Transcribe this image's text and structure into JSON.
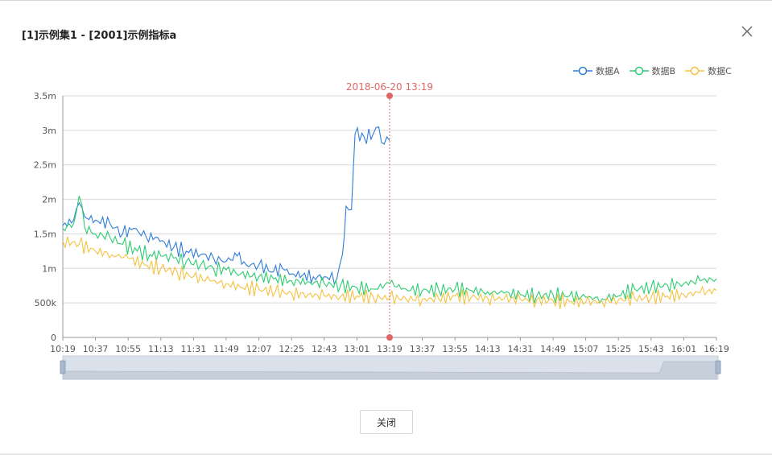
{
  "dialog": {
    "title": "[1]示例集1 - [2001]示例指标a",
    "close_button_label": "关闭",
    "close_icon": "close-icon"
  },
  "chart_data": {
    "type": "line",
    "title": "",
    "xlabel": "",
    "ylabel": "",
    "x_ticks": [
      "10:19",
      "10:37",
      "10:55",
      "11:13",
      "11:31",
      "11:49",
      "12:07",
      "12:25",
      "12:43",
      "13:01",
      "13:19",
      "13:37",
      "13:55",
      "14:13",
      "14:31",
      "14:49",
      "15:07",
      "15:25",
      "15:43",
      "16:01",
      "16:19"
    ],
    "y_ticks": [
      "0",
      "500k",
      "1m",
      "1.5m",
      "2m",
      "2.5m",
      "3m",
      "3.5m"
    ],
    "ylim": [
      0,
      3500000
    ],
    "grid": true,
    "legend_position": "top-right",
    "marker": {
      "label": "2018-06-20 13:19",
      "x": "13:19",
      "color": "#e06666"
    },
    "series": [
      {
        "name": "数据A",
        "color": "#2f7ed8",
        "points": [
          [
            "10:19",
            1620000
          ],
          [
            "10:25",
            1700000
          ],
          [
            "10:28",
            1950000
          ],
          [
            "10:31",
            1750000
          ],
          [
            "10:37",
            1700000
          ],
          [
            "10:45",
            1650000
          ],
          [
            "10:52",
            1500000
          ],
          [
            "10:58",
            1580000
          ],
          [
            "11:05",
            1450000
          ],
          [
            "11:10",
            1450000
          ],
          [
            "11:15",
            1380000
          ],
          [
            "11:20",
            1300000
          ],
          [
            "11:27",
            1250000
          ],
          [
            "11:35",
            1200000
          ],
          [
            "11:42",
            1150000
          ],
          [
            "11:49",
            1100000
          ],
          [
            "11:55",
            1180000
          ],
          [
            "12:00",
            1050000
          ],
          [
            "12:07",
            1050000
          ],
          [
            "12:15",
            950000
          ],
          [
            "12:20",
            1000000
          ],
          [
            "12:25",
            920000
          ],
          [
            "12:31",
            900000
          ],
          [
            "12:37",
            880000
          ],
          [
            "12:43",
            880000
          ],
          [
            "12:50",
            860000
          ],
          [
            "12:53",
            1200000
          ],
          [
            "12:55",
            1900000
          ],
          [
            "12:58",
            1850000
          ],
          [
            "13:00",
            2950000
          ],
          [
            "13:05",
            2900000
          ],
          [
            "13:10",
            2950000
          ],
          [
            "13:13",
            3050000
          ],
          [
            "13:16",
            2800000
          ],
          [
            "13:19",
            2850000
          ]
        ]
      },
      {
        "name": "数据B",
        "color": "#2ecc71",
        "points": [
          [
            "10:19",
            1580000
          ],
          [
            "10:25",
            1650000
          ],
          [
            "10:28",
            2050000
          ],
          [
            "10:31",
            1600000
          ],
          [
            "10:37",
            1500000
          ],
          [
            "10:45",
            1450000
          ],
          [
            "10:52",
            1350000
          ],
          [
            "11:00",
            1250000
          ],
          [
            "11:07",
            1200000
          ],
          [
            "11:13",
            1180000
          ],
          [
            "11:20",
            1150000
          ],
          [
            "11:27",
            1100000
          ],
          [
            "11:35",
            1050000
          ],
          [
            "11:42",
            1000000
          ],
          [
            "11:49",
            980000
          ],
          [
            "11:57",
            920000
          ],
          [
            "12:07",
            880000
          ],
          [
            "12:15",
            850000
          ],
          [
            "12:25",
            820000
          ],
          [
            "12:35",
            800000
          ],
          [
            "12:43",
            780000
          ],
          [
            "12:52",
            750000
          ],
          [
            "13:01",
            720000
          ],
          [
            "13:10",
            700000
          ],
          [
            "13:19",
            780000
          ],
          [
            "13:28",
            700000
          ],
          [
            "13:37",
            680000
          ],
          [
            "13:46",
            690000
          ],
          [
            "13:55",
            700000
          ],
          [
            "14:04",
            680000
          ],
          [
            "14:13",
            660000
          ],
          [
            "14:22",
            640000
          ],
          [
            "14:31",
            620000
          ],
          [
            "14:40",
            600000
          ],
          [
            "14:49",
            620000
          ],
          [
            "14:58",
            600000
          ],
          [
            "15:07",
            580000
          ],
          [
            "15:16",
            560000
          ],
          [
            "15:25",
            600000
          ],
          [
            "15:34",
            700000
          ],
          [
            "15:43",
            720000
          ],
          [
            "15:52",
            760000
          ],
          [
            "16:01",
            780000
          ],
          [
            "16:10",
            820000
          ],
          [
            "16:19",
            850000
          ]
        ]
      },
      {
        "name": "数据C",
        "color": "#f5c242",
        "points": [
          [
            "10:19",
            1400000
          ],
          [
            "10:28",
            1350000
          ],
          [
            "10:37",
            1250000
          ],
          [
            "10:46",
            1200000
          ],
          [
            "10:55",
            1150000
          ],
          [
            "11:04",
            1050000
          ],
          [
            "11:13",
            1000000
          ],
          [
            "11:22",
            950000
          ],
          [
            "11:31",
            880000
          ],
          [
            "11:40",
            820000
          ],
          [
            "11:49",
            780000
          ],
          [
            "11:58",
            720000
          ],
          [
            "12:07",
            700000
          ],
          [
            "12:16",
            660000
          ],
          [
            "12:25",
            640000
          ],
          [
            "12:34",
            620000
          ],
          [
            "12:43",
            600000
          ],
          [
            "12:52",
            590000
          ],
          [
            "13:01",
            600000
          ],
          [
            "13:10",
            580000
          ],
          [
            "13:19",
            570000
          ],
          [
            "13:28",
            560000
          ],
          [
            "13:37",
            550000
          ],
          [
            "13:46",
            560000
          ],
          [
            "13:55",
            600000
          ],
          [
            "14:04",
            580000
          ],
          [
            "14:13",
            570000
          ],
          [
            "14:22",
            560000
          ],
          [
            "14:31",
            550000
          ],
          [
            "14:40",
            540000
          ],
          [
            "14:49",
            530000
          ],
          [
            "14:58",
            520000
          ],
          [
            "15:07",
            510000
          ],
          [
            "15:16",
            520000
          ],
          [
            "15:25",
            540000
          ],
          [
            "15:34",
            560000
          ],
          [
            "15:43",
            580000
          ],
          [
            "15:52",
            600000
          ],
          [
            "16:01",
            620000
          ],
          [
            "16:10",
            650000
          ],
          [
            "16:19",
            680000
          ]
        ]
      }
    ]
  }
}
